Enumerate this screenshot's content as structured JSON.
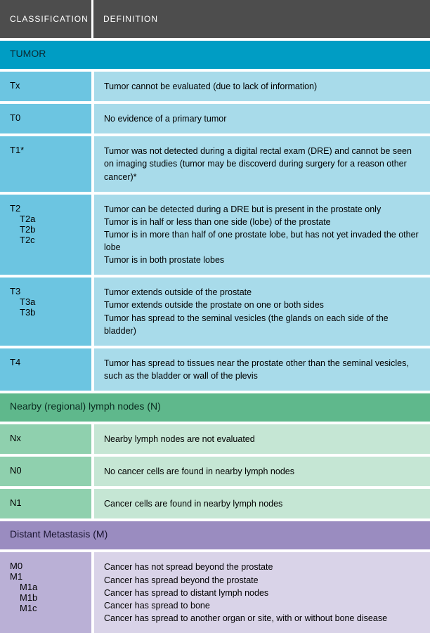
{
  "header": {
    "bg": "#4d4d4d",
    "classification_label": "CLASSIFICATION",
    "definition_label": "DEFINITION"
  },
  "sections": [
    {
      "id": "tumor",
      "title": "TUMOR",
      "header_bg": "#009dc4",
      "header_text_color": "#0a2a33",
      "row_class_bg": "#6cc5e1",
      "row_def_bg": "#a8dbea",
      "rows": [
        {
          "class_lines": [
            "Tx"
          ],
          "def_lines": [
            "Tumor cannot be evaluated (due to lack of information)"
          ]
        },
        {
          "class_lines": [
            "T0"
          ],
          "def_lines": [
            "No evidence of a primary tumor"
          ]
        },
        {
          "class_lines": [
            "T1*"
          ],
          "def_lines": [
            "Tumor was not detected during a digital rectal exam (DRE) and cannot be seen on imaging studies (tumor may be discoverd during surgery for a reason other cancer)*"
          ]
        },
        {
          "class_lines": [
            "T2",
            "  T2a",
            "  T2b",
            "  T2c"
          ],
          "def_lines": [
            "Tumor can be detected during a DRE but is present in the prostate only",
            "Tumor is in half or less than one side (lobe) of the prostate",
            "Tumor is in more than half of one prostate lobe, but has not yet invaded the other lobe",
            "Tumor is in both prostate lobes"
          ]
        },
        {
          "class_lines": [
            "T3",
            "  T3a",
            "  T3b"
          ],
          "def_lines": [
            "Tumor extends outside of the prostate",
            "Tumor extends outside the prostate on one or both sides",
            "Tumor has spread to the seminal vesicles (the glands on each side of the bladder)"
          ]
        },
        {
          "class_lines": [
            "T4"
          ],
          "def_lines": [
            "Tumor has spread to tissues near the prostate other than the seminal vesicles, such as the bladder or wall of the plevis"
          ]
        }
      ]
    },
    {
      "id": "lymph",
      "title": "Nearby (regional) lymph nodes (N)",
      "header_bg": "#5fb88c",
      "header_text_color": "#0a2a1f",
      "row_class_bg": "#8fd0ae",
      "row_def_bg": "#c5e6d4",
      "rows": [
        {
          "class_lines": [
            "Nx"
          ],
          "def_lines": [
            "Nearby lymph nodes are not evaluated"
          ]
        },
        {
          "class_lines": [
            "N0"
          ],
          "def_lines": [
            "No cancer cells are found in nearby lymph nodes"
          ]
        },
        {
          "class_lines": [
            "N1"
          ],
          "def_lines": [
            "Cancer cells are found in nearby lymph nodes"
          ]
        }
      ]
    },
    {
      "id": "metastasis",
      "title": "Distant Metastasis (M)",
      "header_bg": "#9a8cc0",
      "header_text_color": "#1a1530",
      "row_class_bg": "#bab0d6",
      "row_def_bg": "#d9d3e8",
      "rows": [
        {
          "class_lines": [
            "M0",
            "M1",
            "  M1a",
            "  M1b",
            "  M1c"
          ],
          "def_lines": [
            "Cancer has not spread beyond the prostate",
            "Cancer has spread beyond the prostate",
            "Cancer has spread to distant lymph nodes",
            "Cancer has spread to bone",
            "Cancer has spread to another organ or site, with or without bone disease"
          ]
        }
      ]
    }
  ]
}
